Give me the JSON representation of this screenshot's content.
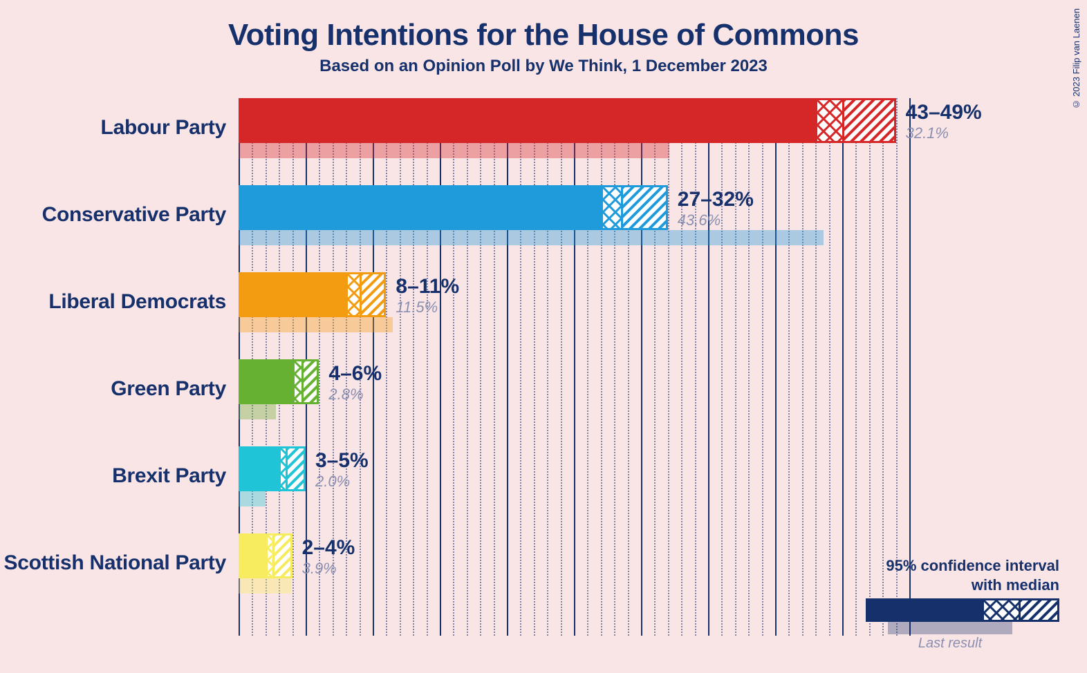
{
  "title": "Voting Intentions for the House of Commons",
  "subtitle": "Based on an Opinion Poll by We Think, 1 December 2023",
  "copyright": "© 2023 Filip van Laenen",
  "background_color": "#fae5e6",
  "text_color": "#15306b",
  "muted_color": "#8a8fb0",
  "title_fontsize": 44,
  "subtitle_fontsize": 24,
  "label_fontsize": 30,
  "chart": {
    "type": "bar-horizontal-confidence",
    "xmax": 50,
    "major_tick_step": 5,
    "minor_tick_step": 1,
    "grid_major_color": "#15306b",
    "grid_minor_color": "rgba(21,48,107,0.55)",
    "bar_main_height": 65,
    "bar_last_height": 22,
    "row_gap": 126,
    "uncert_split_cross_hatch": 0.5,
    "parties": [
      {
        "name": "Labour Party",
        "color": "#d62728",
        "low": 43,
        "median": 45,
        "high": 49,
        "last": 32.1,
        "range_label": "43–49%",
        "last_label": "32.1%"
      },
      {
        "name": "Conservative Party",
        "color": "#1f9bdc",
        "low": 27,
        "median": 28.5,
        "high": 32,
        "last": 43.6,
        "range_label": "27–32%",
        "last_label": "43.6%"
      },
      {
        "name": "Liberal Democrats",
        "color": "#f39c12",
        "low": 8,
        "median": 9,
        "high": 11,
        "last": 11.5,
        "range_label": "8–11%",
        "last_label": "11.5%"
      },
      {
        "name": "Green Party",
        "color": "#66b032",
        "low": 4,
        "median": 4.7,
        "high": 6,
        "last": 2.8,
        "range_label": "4–6%",
        "last_label": "2.8%"
      },
      {
        "name": "Brexit Party",
        "color": "#1fc4d6",
        "low": 3,
        "median": 3.5,
        "high": 5,
        "last": 2.0,
        "range_label": "3–5%",
        "last_label": "2.0%"
      },
      {
        "name": "Scottish National Party",
        "color": "#f7ec5f",
        "low": 2,
        "median": 2.5,
        "high": 4,
        "last": 3.9,
        "range_label": "2–4%",
        "last_label": "3.9%"
      }
    ]
  },
  "legend": {
    "line1": "95% confidence interval",
    "line2": "with median",
    "last_label": "Last result",
    "color": "#15306b"
  }
}
